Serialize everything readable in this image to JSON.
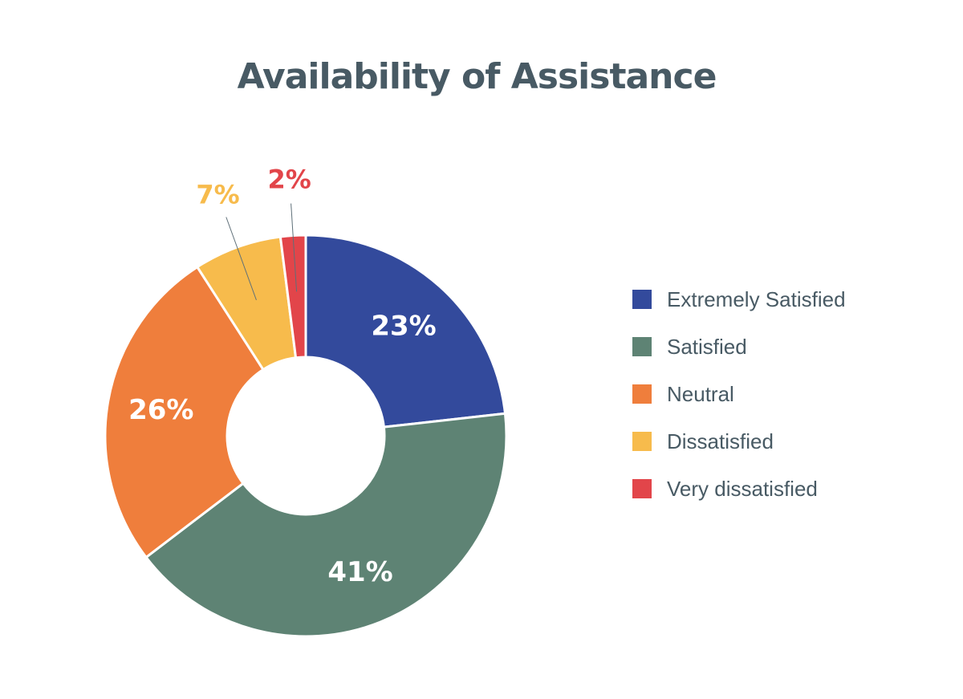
{
  "chart_data": {
    "type": "pie",
    "title": "Availability of Assistance",
    "donut": true,
    "legend_position": "right",
    "categories": [
      "Extremely Satisfied",
      "Satisfied",
      "Neutral",
      "Dissatisfied",
      "Very dissatisfied"
    ],
    "values": [
      23,
      41,
      26,
      7,
      2
    ],
    "data_labels": [
      "23%",
      "41%",
      "26%",
      "7%",
      "2%"
    ],
    "colors": [
      "#334a9c",
      "#5e8374",
      "#ef7e3c",
      "#f7bb4c",
      "#e2454a"
    ]
  }
}
